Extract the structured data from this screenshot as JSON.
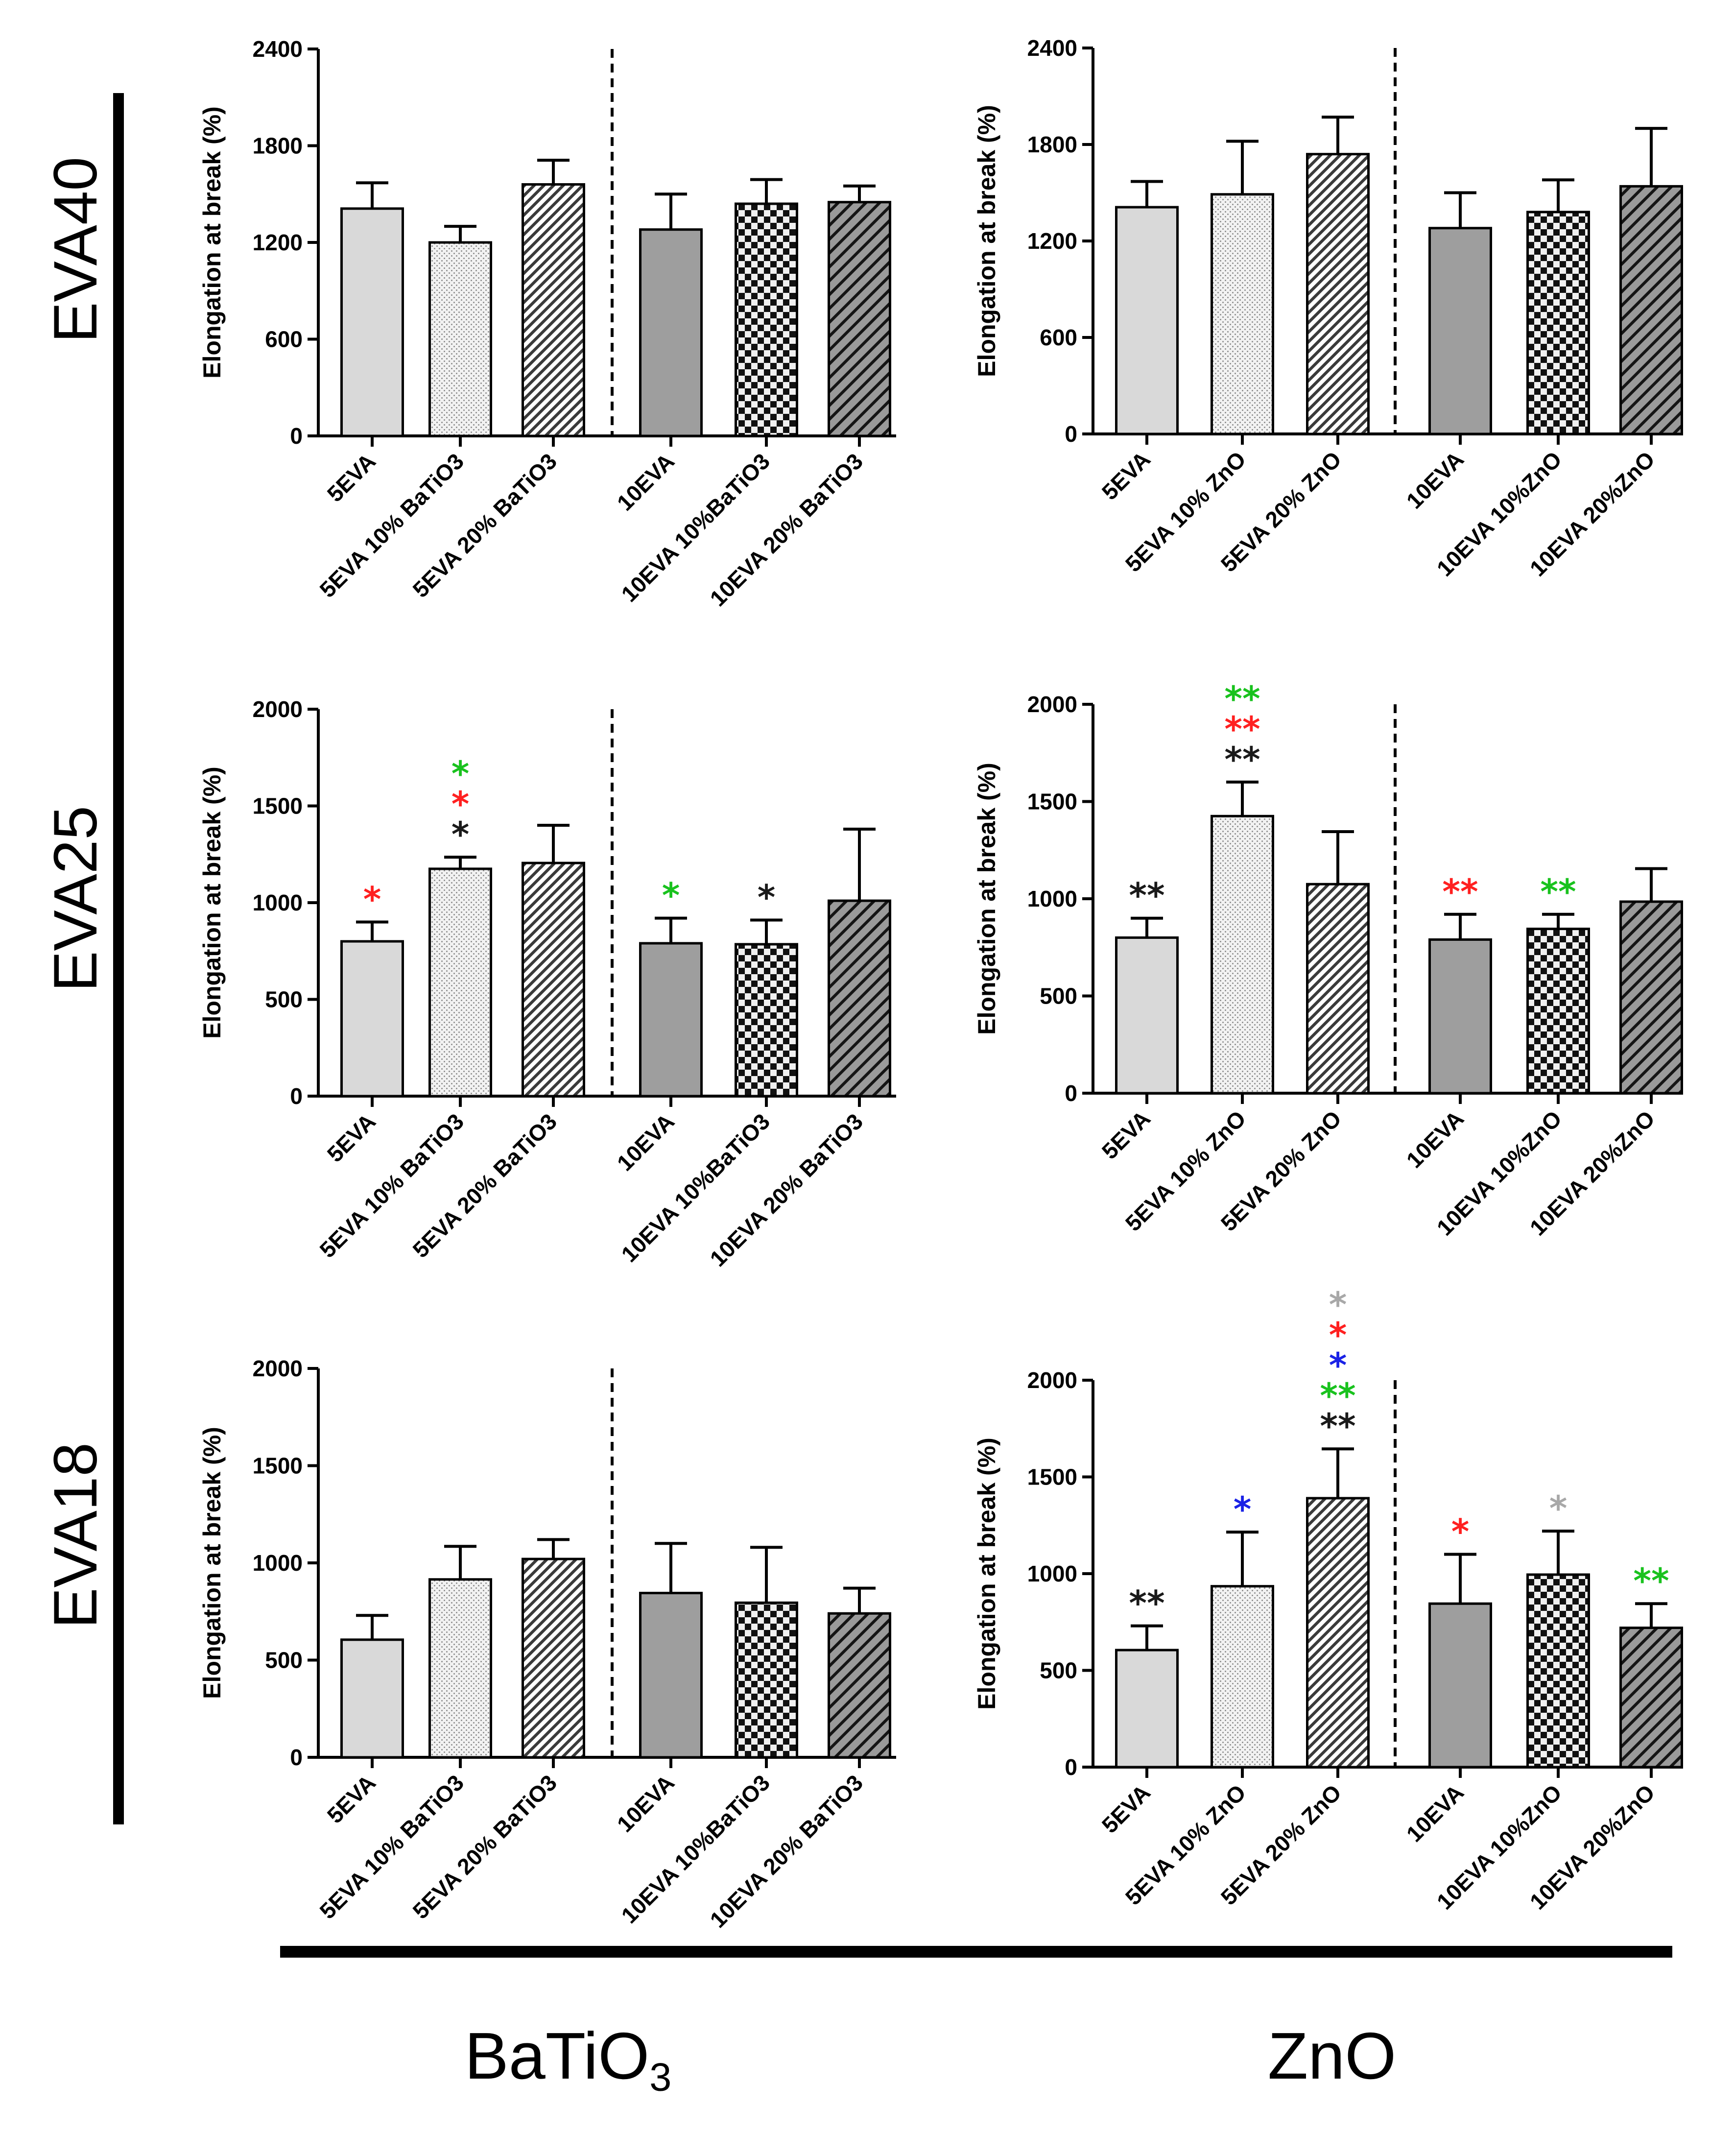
{
  "row_labels": [
    "EVA40",
    "EVA25",
    "EVA18"
  ],
  "column_labels": {
    "batio3": {
      "main": "BaTiO",
      "subscript": "3"
    },
    "zno": {
      "main": "ZnO"
    }
  },
  "star_colors": {
    "black": "#1a1a1a",
    "red": "#ff2020",
    "green": "#19c21e",
    "blue": "#1a22e6",
    "grey": "#a8a8a8"
  },
  "chart_data": [
    {
      "id": "eva40-batio3",
      "type": "bar",
      "title": "",
      "ylabel": "Elongation at break (%)",
      "ylim": [
        0,
        2400
      ],
      "yticks": [
        0,
        600,
        1200,
        1800,
        2400
      ],
      "categories": [
        "5EVA",
        "5EVA 10% BaTiO3",
        "5EVA 20% BaTiO3",
        "10EVA",
        "10EVA 10%BaTiO3",
        "10EVA 20% BaTiO3"
      ],
      "values": [
        1410,
        1200,
        1560,
        1280,
        1440,
        1450
      ],
      "errors": [
        160,
        100,
        150,
        220,
        150,
        100
      ],
      "annotations": [
        [],
        [],
        [],
        [],
        [],
        []
      ]
    },
    {
      "id": "eva40-zno",
      "type": "bar",
      "title": "",
      "ylabel": "Elongation at break (%)",
      "ylim": [
        0,
        2400
      ],
      "yticks": [
        0,
        600,
        1200,
        1800,
        2400
      ],
      "categories": [
        "5EVA",
        "5EVA 10% ZnO",
        "5EVA 20% ZnO",
        "10EVA",
        "10EVA 10%ZnO",
        "10EVA 20%ZnO"
      ],
      "values": [
        1410,
        1490,
        1740,
        1280,
        1380,
        1540
      ],
      "errors": [
        160,
        330,
        230,
        220,
        200,
        360
      ],
      "annotations": [
        [],
        [],
        [],
        [],
        [],
        []
      ]
    },
    {
      "id": "eva25-batio3",
      "type": "bar",
      "title": "",
      "ylabel": "Elongation at break (%)",
      "ylim": [
        0,
        2000
      ],
      "yticks": [
        0,
        500,
        1000,
        1500,
        2000
      ],
      "categories": [
        "5EVA",
        "5EVA 10% BaTiO3",
        "5EVA 20% BaTiO3",
        "10EVA",
        "10EVA 10%BaTiO3",
        "10EVA 20% BaTiO3"
      ],
      "values": [
        800,
        1175,
        1205,
        790,
        785,
        1010
      ],
      "errors": [
        100,
        60,
        195,
        130,
        125,
        370
      ],
      "annotations": [
        [
          {
            "text": "*",
            "color": "red"
          }
        ],
        [
          {
            "text": "*",
            "color": "black"
          },
          {
            "text": "*",
            "color": "red"
          },
          {
            "text": "*",
            "color": "green"
          }
        ],
        [],
        [
          {
            "text": "*",
            "color": "green"
          }
        ],
        [
          {
            "text": "*",
            "color": "black"
          }
        ],
        []
      ]
    },
    {
      "id": "eva25-zno",
      "type": "bar",
      "title": "",
      "ylabel": "Elongation at break (%)",
      "ylim": [
        0,
        2000
      ],
      "yticks": [
        0,
        500,
        1000,
        1500,
        2000
      ],
      "categories": [
        "5EVA",
        "5EVA 10% ZnO",
        "5EVA 20% ZnO",
        "10EVA",
        "10EVA 10%ZnO",
        "10EVA 20%ZnO"
      ],
      "values": [
        800,
        1425,
        1075,
        790,
        845,
        985
      ],
      "errors": [
        100,
        175,
        270,
        130,
        75,
        170
      ],
      "annotations": [
        [
          {
            "text": "**",
            "color": "black"
          }
        ],
        [
          {
            "text": "**",
            "color": "black"
          },
          {
            "text": "**",
            "color": "red"
          },
          {
            "text": "**",
            "color": "green"
          }
        ],
        [],
        [
          {
            "text": "**",
            "color": "red"
          }
        ],
        [
          {
            "text": "**",
            "color": "green"
          }
        ],
        []
      ]
    },
    {
      "id": "eva18-batio3",
      "type": "bar",
      "title": "",
      "ylabel": "Elongation at break (%)",
      "ylim": [
        0,
        2000
      ],
      "yticks": [
        0,
        500,
        1000,
        1500,
        2000
      ],
      "categories": [
        "5EVA",
        "5EVA 10% BaTiO3",
        "5EVA 20% BaTiO3",
        "10EVA",
        "10EVA 10%BaTiO3",
        "10EVA 20% BaTiO3"
      ],
      "values": [
        605,
        915,
        1020,
        845,
        795,
        740
      ],
      "errors": [
        125,
        170,
        100,
        255,
        285,
        130
      ],
      "annotations": [
        [],
        [],
        [],
        [],
        [],
        []
      ]
    },
    {
      "id": "eva18-zno",
      "type": "bar",
      "title": "",
      "ylabel": "Elongation at break (%)",
      "ylim": [
        0,
        2000
      ],
      "yticks": [
        0,
        500,
        1000,
        1500,
        2000
      ],
      "categories": [
        "5EVA",
        "5EVA 10% ZnO",
        "5EVA 20% ZnO",
        "10EVA",
        "10EVA 10%ZnO",
        "10EVA 20%ZnO"
      ],
      "values": [
        605,
        935,
        1390,
        845,
        995,
        720
      ],
      "errors": [
        125,
        280,
        255,
        255,
        225,
        125
      ],
      "annotations": [
        [
          {
            "text": "**",
            "color": "black"
          }
        ],
        [
          {
            "text": "*",
            "color": "blue"
          }
        ],
        [
          {
            "text": "**",
            "color": "black"
          },
          {
            "text": "**",
            "color": "green"
          },
          {
            "text": "*",
            "color": "blue"
          },
          {
            "text": "*",
            "color": "red"
          },
          {
            "text": "*",
            "color": "grey"
          }
        ],
        [
          {
            "text": "*",
            "color": "red"
          }
        ],
        [
          {
            "text": "*",
            "color": "grey"
          }
        ],
        [
          {
            "text": "**",
            "color": "green"
          }
        ]
      ]
    }
  ]
}
